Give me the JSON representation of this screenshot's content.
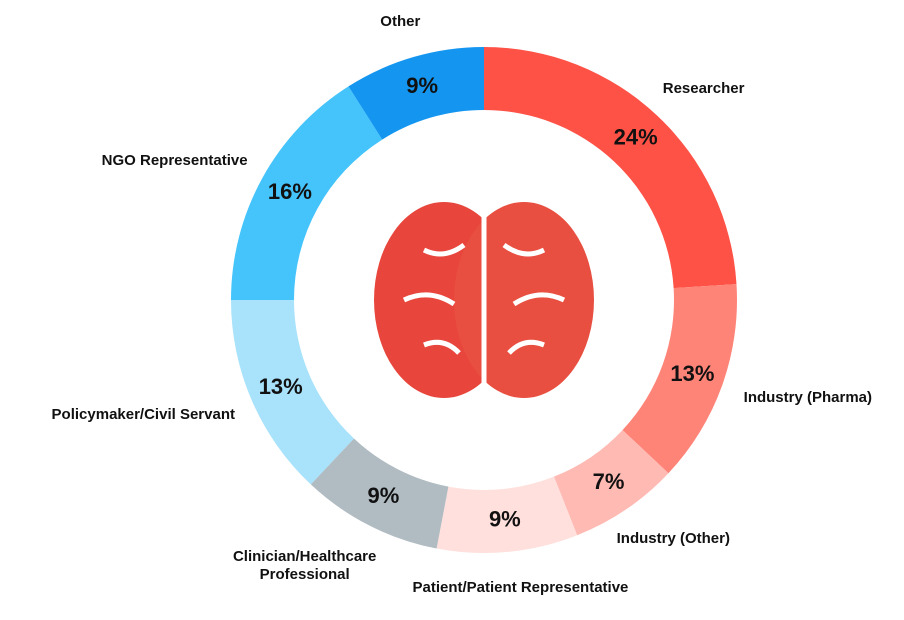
{
  "chart_data": {
    "type": "pie",
    "donut": true,
    "categories": [
      "Researcher",
      "Industry (Pharma)",
      "Industry (Other)",
      "Patient/Patient Representative",
      "Clinician/Healthcare Professional",
      "Policymaker/Civil Servant",
      "NGO Representative",
      "Other"
    ],
    "values": [
      24,
      13,
      7,
      9,
      9,
      13,
      16,
      9
    ],
    "value_labels": [
      "24%",
      "13%",
      "7%",
      "9%",
      "9%",
      "13%",
      "16%",
      "9%"
    ],
    "colors": [
      "#ff5247",
      "#ff8478",
      "#ffbab3",
      "#ffe0dd",
      "#b0bbc2",
      "#a8e2fb",
      "#45c4fc",
      "#1496f0"
    ]
  }
}
